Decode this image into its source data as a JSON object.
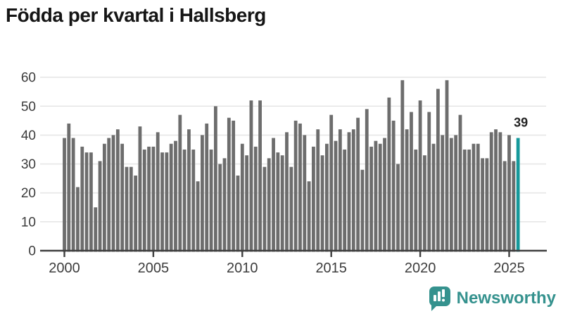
{
  "title": "Födda per kvartal i Hallsberg",
  "chart_data": {
    "type": "bar",
    "unit": "births per quarter",
    "start": "2000-Q1",
    "end": "2025-Q3",
    "years": [
      {
        "year": 2000,
        "values": [
          39,
          44,
          39,
          22
        ]
      },
      {
        "year": 2001,
        "values": [
          36,
          34,
          34,
          15
        ]
      },
      {
        "year": 2002,
        "values": [
          31,
          37,
          39,
          40
        ]
      },
      {
        "year": 2003,
        "values": [
          42,
          37,
          29,
          29
        ]
      },
      {
        "year": 2004,
        "values": [
          26,
          43,
          35,
          36
        ]
      },
      {
        "year": 2005,
        "values": [
          36,
          41,
          34,
          34
        ]
      },
      {
        "year": 2006,
        "values": [
          37,
          38,
          47,
          35
        ]
      },
      {
        "year": 2007,
        "values": [
          42,
          35,
          24,
          40
        ]
      },
      {
        "year": 2008,
        "values": [
          44,
          35,
          50,
          30
        ]
      },
      {
        "year": 2009,
        "values": [
          32,
          46,
          45,
          26
        ]
      },
      {
        "year": 2010,
        "values": [
          37,
          33,
          52,
          36
        ]
      },
      {
        "year": 2011,
        "values": [
          52,
          29,
          32,
          39
        ]
      },
      {
        "year": 2012,
        "values": [
          34,
          33,
          41,
          29
        ]
      },
      {
        "year": 2013,
        "values": [
          45,
          44,
          40,
          24
        ]
      },
      {
        "year": 2014,
        "values": [
          36,
          42,
          33,
          37
        ]
      },
      {
        "year": 2015,
        "values": [
          47,
          38,
          42,
          35
        ]
      },
      {
        "year": 2016,
        "values": [
          41,
          42,
          46,
          28
        ]
      },
      {
        "year": 2017,
        "values": [
          49,
          36,
          38,
          37
        ]
      },
      {
        "year": 2018,
        "values": [
          39,
          53,
          45,
          30
        ]
      },
      {
        "year": 2019,
        "values": [
          59,
          42,
          48,
          35
        ]
      },
      {
        "year": 2020,
        "values": [
          52,
          33,
          48,
          37
        ]
      },
      {
        "year": 2021,
        "values": [
          56,
          40,
          59,
          39
        ]
      },
      {
        "year": 2022,
        "values": [
          40,
          47,
          35,
          35
        ]
      },
      {
        "year": 2023,
        "values": [
          37,
          37,
          32,
          32
        ]
      },
      {
        "year": 2024,
        "values": [
          41,
          42,
          41,
          31
        ]
      },
      {
        "year": 2025,
        "values": [
          40,
          31,
          39
        ]
      }
    ],
    "highlight": {
      "position": "last",
      "label": "39",
      "color": "#16999b"
    },
    "bar_color": "#6d6d6d",
    "grid": true,
    "grid_color": "#e6e6e6",
    "axis_color": "#3f3f3f",
    "label_color": "#3c3c3c",
    "ylim": [
      0,
      60
    ],
    "yticks": [
      0,
      10,
      20,
      30,
      40,
      50,
      60
    ],
    "xticks": [
      2000,
      2005,
      2010,
      2015,
      2020,
      2025
    ],
    "legend": "none"
  },
  "footer": {
    "brand": "Newsworthy"
  }
}
